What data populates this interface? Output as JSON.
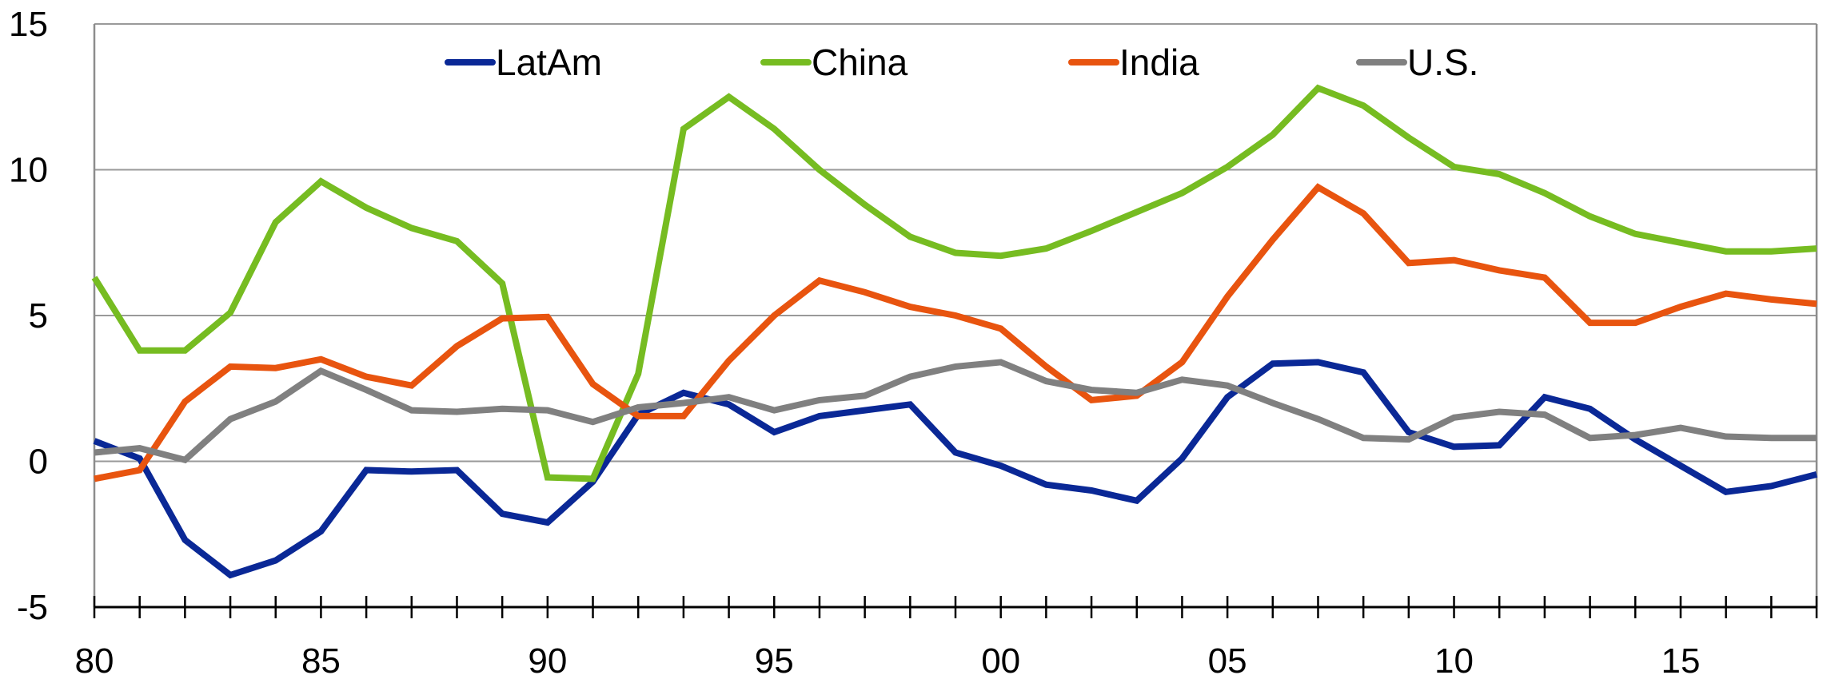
{
  "chart_data": {
    "type": "line",
    "x": [
      1980,
      1981,
      1982,
      1983,
      1984,
      1985,
      1986,
      1987,
      1988,
      1989,
      1990,
      1991,
      1992,
      1993,
      1994,
      1995,
      1996,
      1997,
      1998,
      1999,
      2000,
      2001,
      2002,
      2003,
      2004,
      2005,
      2006,
      2007,
      2008,
      2009,
      2010,
      2011,
      2012,
      2013,
      2014,
      2015,
      2016,
      2017,
      2018
    ],
    "xlim": [
      1980,
      2018
    ],
    "ylim": [
      -5,
      15
    ],
    "x_tick_values": [
      1980,
      1985,
      1990,
      1995,
      2000,
      2005,
      2010,
      2015
    ],
    "x_tick_labels": [
      "80",
      "85",
      "90",
      "95",
      "00",
      "05",
      "10",
      "15"
    ],
    "y_tick_values": [
      -5,
      0,
      5,
      10,
      15
    ],
    "y_tick_labels": [
      "-5",
      "0",
      "5",
      "10",
      "15"
    ],
    "grid": "horizontal",
    "legend": "top",
    "series": [
      {
        "name": "LatAm",
        "color": "#0a2896",
        "values": [
          0.7,
          0.1,
          -2.7,
          -3.9,
          -3.4,
          -2.4,
          -0.3,
          -0.35,
          -0.3,
          -1.8,
          -2.1,
          -0.7,
          1.6,
          2.35,
          1.95,
          1.0,
          1.55,
          1.75,
          1.95,
          0.3,
          -0.15,
          -0.8,
          -1.0,
          -1.35,
          0.1,
          2.2,
          3.35,
          3.4,
          3.05,
          1.0,
          0.5,
          0.55,
          2.2,
          1.8,
          0.75,
          -0.15,
          -1.05,
          -0.85,
          -0.45
        ]
      },
      {
        "name": "China",
        "color": "#76bc21",
        "values": [
          6.3,
          3.8,
          3.8,
          5.1,
          8.2,
          9.6,
          8.7,
          8.0,
          7.55,
          6.1,
          -0.55,
          -0.6,
          3.0,
          11.4,
          12.5,
          11.4,
          10.0,
          8.8,
          7.7,
          7.15,
          7.05,
          7.3,
          7.9,
          8.55,
          9.2,
          10.1,
          11.2,
          12.8,
          12.2,
          11.1,
          10.1,
          9.85,
          9.2,
          8.4,
          7.8,
          7.5,
          7.2,
          7.2,
          7.3
        ]
      },
      {
        "name": "India",
        "color": "#e8540f",
        "values": [
          -0.6,
          -0.3,
          2.05,
          3.25,
          3.2,
          3.5,
          2.9,
          2.6,
          3.95,
          4.9,
          4.95,
          2.65,
          1.55,
          1.55,
          3.45,
          5.0,
          6.2,
          5.8,
          5.3,
          5.0,
          4.55,
          3.25,
          2.1,
          2.25,
          3.4,
          5.65,
          7.6,
          9.4,
          8.5,
          6.8,
          6.9,
          6.55,
          6.3,
          4.75,
          4.75,
          5.3,
          5.75,
          5.55,
          5.4
        ]
      },
      {
        "name": "U.S.",
        "color": "#808080",
        "values": [
          0.3,
          0.45,
          0.05,
          1.45,
          2.05,
          3.1,
          2.45,
          1.75,
          1.7,
          1.8,
          1.75,
          1.35,
          1.85,
          2.0,
          2.2,
          1.75,
          2.1,
          2.25,
          2.9,
          3.25,
          3.4,
          2.75,
          2.45,
          2.35,
          2.8,
          2.6,
          2.0,
          1.45,
          0.8,
          0.75,
          1.5,
          1.7,
          1.6,
          0.8,
          0.9,
          1.15,
          0.85,
          0.8,
          0.8
        ]
      }
    ]
  }
}
